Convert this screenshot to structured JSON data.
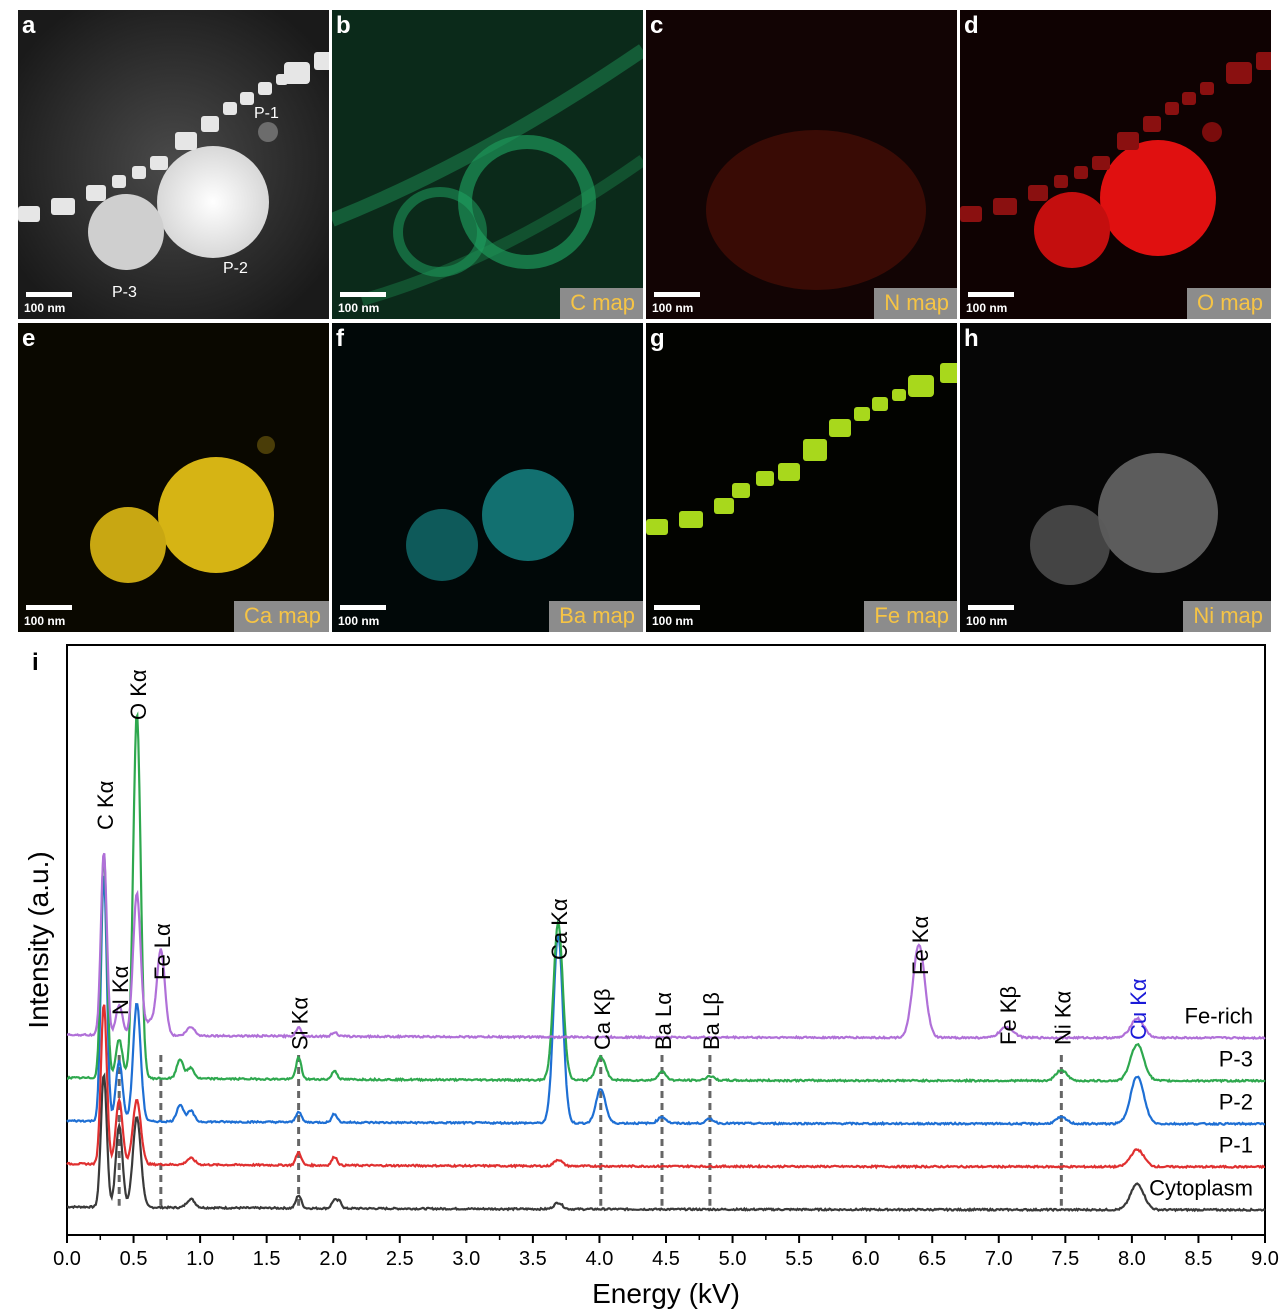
{
  "panels": [
    {
      "letter": "a",
      "map": "",
      "scale": "100 nm",
      "tint": "#e0e0e0"
    },
    {
      "letter": "b",
      "map": "C map",
      "scale": "100 nm",
      "tint": "#27c27a"
    },
    {
      "letter": "c",
      "map": "N map",
      "scale": "100 nm",
      "tint": "#d02c1a"
    },
    {
      "letter": "d",
      "map": "O map",
      "scale": "100 nm",
      "tint": "#ff1414"
    },
    {
      "letter": "e",
      "map": "Ca map",
      "scale": "100 nm",
      "tint": "#e8c71a"
    },
    {
      "letter": "f",
      "map": "Ba map",
      "scale": "100 nm",
      "tint": "#28b8c0"
    },
    {
      "letter": "g",
      "map": "Fe map",
      "scale": "100 nm",
      "tint": "#b4e61e"
    },
    {
      "letter": "h",
      "map": "Ni map",
      "scale": "100 nm",
      "tint": "#e6e6e6"
    }
  ],
  "panel_a_labels": {
    "p1": "P-1",
    "p2": "P-2",
    "p3": "P-3"
  },
  "chart_data": {
    "type": "line",
    "panel_letter": "i",
    "xlabel": "Energy (kV)",
    "ylabel": "Intensity (a.u.)",
    "xlim": [
      0.0,
      9.0
    ],
    "xticks": [
      "0.0",
      "0.5",
      "1.0",
      "1.5",
      "2.0",
      "2.5",
      "3.0",
      "3.5",
      "4.0",
      "4.5",
      "5.0",
      "5.5",
      "6.0",
      "6.5",
      "7.0",
      "7.5",
      "8.0",
      "8.5",
      "9.0"
    ],
    "series": [
      {
        "name": "Cytoplasm",
        "color": "#3a3a3a",
        "offset": 0.0,
        "peaks": [
          [
            0.277,
            0.62,
            0.022
          ],
          [
            0.392,
            0.38,
            0.025
          ],
          [
            0.525,
            0.42,
            0.03
          ],
          [
            0.93,
            0.04,
            0.03
          ],
          [
            1.74,
            0.06,
            0.02
          ],
          [
            2.01,
            0.04,
            0.02
          ],
          [
            2.05,
            0.03,
            0.015
          ],
          [
            3.69,
            0.03,
            0.03
          ],
          [
            8.04,
            0.12,
            0.05
          ]
        ]
      },
      {
        "name": "P-1",
        "color": "#e03030",
        "offset": 0.2,
        "peaks": [
          [
            0.277,
            0.75,
            0.022
          ],
          [
            0.392,
            0.3,
            0.025
          ],
          [
            0.525,
            0.3,
            0.03
          ],
          [
            0.93,
            0.03,
            0.03
          ],
          [
            1.74,
            0.06,
            0.02
          ],
          [
            2.01,
            0.04,
            0.02
          ],
          [
            3.69,
            0.03,
            0.03
          ],
          [
            8.04,
            0.08,
            0.05
          ]
        ]
      },
      {
        "name": "P-2",
        "color": "#1e6fd4",
        "offset": 0.4,
        "peaks": [
          [
            0.277,
            1.15,
            0.022
          ],
          [
            0.392,
            0.28,
            0.025
          ],
          [
            0.525,
            0.55,
            0.028
          ],
          [
            0.85,
            0.08,
            0.025
          ],
          [
            0.93,
            0.05,
            0.025
          ],
          [
            1.74,
            0.05,
            0.02
          ],
          [
            2.01,
            0.04,
            0.02
          ],
          [
            3.69,
            0.88,
            0.035
          ],
          [
            4.01,
            0.16,
            0.035
          ],
          [
            4.47,
            0.03,
            0.03
          ],
          [
            4.83,
            0.02,
            0.03
          ],
          [
            7.47,
            0.03,
            0.04
          ],
          [
            8.04,
            0.22,
            0.05
          ]
        ]
      },
      {
        "name": "P-3",
        "color": "#2ea84e",
        "offset": 0.6,
        "peaks": [
          [
            0.277,
            1.05,
            0.022
          ],
          [
            0.392,
            0.18,
            0.025
          ],
          [
            0.525,
            1.7,
            0.028
          ],
          [
            0.85,
            0.09,
            0.025
          ],
          [
            0.93,
            0.05,
            0.025
          ],
          [
            1.74,
            0.1,
            0.02
          ],
          [
            2.01,
            0.04,
            0.02
          ],
          [
            3.69,
            0.73,
            0.035
          ],
          [
            4.01,
            0.11,
            0.035
          ],
          [
            4.47,
            0.04,
            0.03
          ],
          [
            4.83,
            0.02,
            0.03
          ],
          [
            7.47,
            0.05,
            0.04
          ],
          [
            8.04,
            0.17,
            0.05
          ]
        ]
      },
      {
        "name": "Fe-rich",
        "color": "#b070d8",
        "offset": 0.8,
        "peaks": [
          [
            0.277,
            0.85,
            0.022
          ],
          [
            0.392,
            0.14,
            0.025
          ],
          [
            0.525,
            0.66,
            0.028
          ],
          [
            0.62,
            0.06,
            0.03
          ],
          [
            0.705,
            0.4,
            0.03
          ],
          [
            0.93,
            0.04,
            0.03
          ],
          [
            1.74,
            0.04,
            0.02
          ],
          [
            2.01,
            0.02,
            0.02
          ],
          [
            6.4,
            0.43,
            0.045
          ],
          [
            7.06,
            0.05,
            0.05
          ],
          [
            8.04,
            0.09,
            0.05
          ]
        ]
      }
    ],
    "peak_labels": [
      {
        "text": "C Kα",
        "x": 0.277,
        "dashed": false
      },
      {
        "text": "N Kα",
        "x": 0.392,
        "dashed": true
      },
      {
        "text": "O Kα",
        "x": 0.525,
        "dashed": false
      },
      {
        "text": "Fe Lα",
        "x": 0.705,
        "dashed": true
      },
      {
        "text": "Si Kα",
        "x": 1.74,
        "dashed": true
      },
      {
        "text": "Ca Kα",
        "x": 3.69,
        "dashed": false
      },
      {
        "text": "Ca Kβ",
        "x": 4.01,
        "dashed": true
      },
      {
        "text": "Ba Lα",
        "x": 4.47,
        "dashed": true
      },
      {
        "text": "Ba Lβ",
        "x": 4.83,
        "dashed": true
      },
      {
        "text": "Fe Kα",
        "x": 6.4,
        "dashed": false
      },
      {
        "text": "Fe Kβ",
        "x": 7.06,
        "dashed": false
      },
      {
        "text": "Ni Kα",
        "x": 7.47,
        "dashed": true
      },
      {
        "text": "Cu Kα",
        "x": 8.04,
        "dashed": false,
        "color": "#1a1ad8"
      }
    ]
  }
}
